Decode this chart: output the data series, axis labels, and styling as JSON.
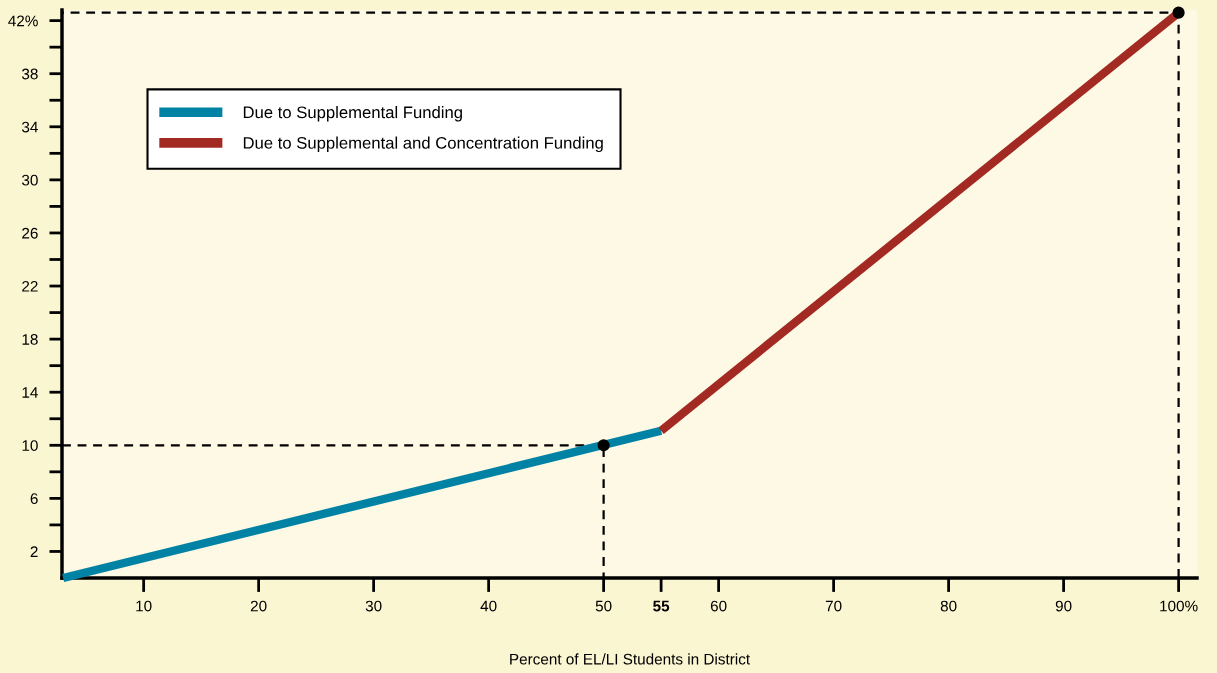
{
  "chart_data": {
    "type": "line",
    "xlabel": "Percent of EL/LI Students in District",
    "series": [
      {
        "name": "Due to Supplemental Funding",
        "color": "#0082a5",
        "x": [
          3,
          55
        ],
        "values": [
          0,
          11.1
        ]
      },
      {
        "name": "Due to Supplemental and Concentration Funding",
        "color": "#a32923",
        "x": [
          55,
          100
        ],
        "values": [
          11.1,
          42.6
        ]
      },
      {
        "type": "line",
        "line_style": "dashed",
        "color": "#000000",
        "x": [
          2.9,
          50,
          50
        ],
        "values": [
          10,
          10,
          0
        ]
      },
      {
        "type": "line",
        "line_style": "dashed",
        "color": "#000000",
        "x": [
          100,
          100,
          2.9
        ],
        "values": [
          0,
          42.6,
          42.6
        ]
      },
      {
        "type": "scatter",
        "marker": "circle",
        "color": "#000000",
        "x": [
          50,
          100
        ],
        "values": [
          10,
          42.6
        ]
      }
    ],
    "xlim": [
      2.9,
      101.6
    ],
    "ylim": [
      0,
      42.8
    ],
    "xticks": [
      10,
      20,
      30,
      40,
      50,
      55,
      60,
      70,
      80,
      90,
      {
        "value": 100,
        "label": "100%"
      }
    ],
    "yticks": [
      2,
      {
        "value": 4,
        "label": null
      },
      6,
      {
        "value": 8,
        "label": null
      },
      10,
      {
        "value": 12,
        "label": null
      },
      14,
      {
        "value": 16,
        "label": null
      },
      18,
      {
        "value": 20,
        "label": null
      },
      22,
      {
        "value": 24,
        "label": null
      },
      26,
      {
        "value": 28,
        "label": null
      },
      30,
      {
        "value": 32,
        "label": null
      },
      34,
      {
        "value": 36,
        "label": null
      },
      38,
      {
        "value": 40,
        "label": null
      },
      {
        "value": 42,
        "label": "42%"
      }
    ],
    "grid": false,
    "legend": "top left"
  }
}
